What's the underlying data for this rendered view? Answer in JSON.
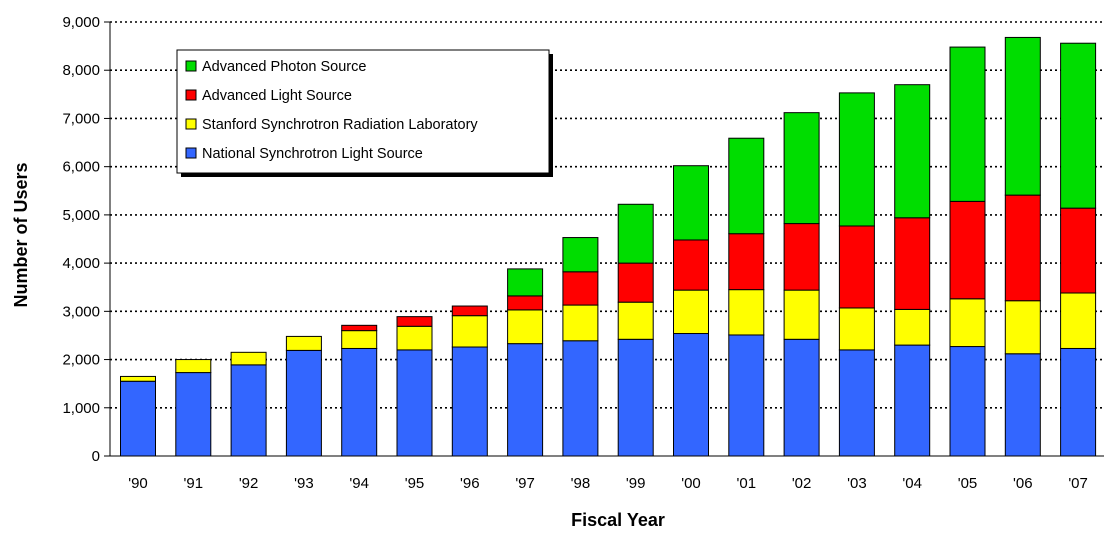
{
  "chart_data": {
    "type": "bar",
    "stacked": true,
    "title": "",
    "xlabel": "Fiscal Year",
    "ylabel": "Number of Users",
    "ylim": [
      0,
      9000
    ],
    "yticks": [
      "0",
      "1,000",
      "2,000",
      "3,000",
      "4,000",
      "5,000",
      "6,000",
      "7,000",
      "8,000",
      "9,000"
    ],
    "grid": "horizontal dotted",
    "legend_position": "top-left",
    "categories": [
      "'90",
      "'91",
      "'92",
      "'93",
      "'94",
      "'95",
      "'96",
      "'97",
      "'98",
      "'99",
      "'00",
      "'01",
      "'02",
      "'03",
      "'04",
      "'05",
      "'06",
      "'07"
    ],
    "series": [
      {
        "name": "National Synchrotron Light Source",
        "color": "#3366ff",
        "values": [
          1550,
          1730,
          1890,
          2190,
          2230,
          2200,
          2260,
          2330,
          2390,
          2420,
          2540,
          2510,
          2420,
          2200,
          2300,
          2270,
          2120,
          2230
        ]
      },
      {
        "name": "Stanford Synchrotron Radiation Laboratory",
        "color": "#ffff00",
        "values": [
          100,
          270,
          260,
          290,
          370,
          490,
          650,
          700,
          740,
          770,
          900,
          940,
          1020,
          870,
          740,
          990,
          1100,
          1150
        ]
      },
      {
        "name": "Advanced Light Source",
        "color": "#ff0000",
        "values": [
          0,
          0,
          0,
          0,
          110,
          200,
          200,
          290,
          690,
          810,
          1040,
          1160,
          1380,
          1700,
          1900,
          2020,
          2190,
          1760
        ]
      },
      {
        "name": "Advanced Photon Source",
        "color": "#00dd00",
        "values": [
          0,
          0,
          0,
          0,
          0,
          0,
          0,
          560,
          710,
          1220,
          1540,
          1980,
          2300,
          2760,
          2760,
          3200,
          3270,
          3420
        ]
      }
    ],
    "legend_order": [
      "Advanced Photon Source",
      "Advanced Light Source",
      "Stanford Synchrotron Radiation Laboratory",
      "National Synchrotron Light Source"
    ]
  }
}
